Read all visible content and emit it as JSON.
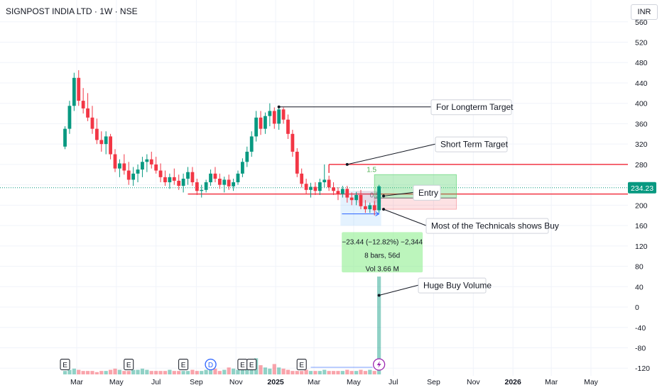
{
  "header": {
    "title": "SIGNPOST INDIA LTD · 1W · NSE",
    "currency": "INR"
  },
  "price_tag": "234.23",
  "annotations": {
    "longterm": "For Longterm Target",
    "shortterm": "Short Term Target",
    "entry": "Entry",
    "technicals": "Most of the Technicals shows Buy",
    "volume": "Huge Buy Volume",
    "rr_top": "1.5",
    "rr_mid": "0.5"
  },
  "measure": {
    "line1": "−23.44 (−12.82%) −2,344",
    "line2": "8 bars, 56d",
    "line3": "Vol 3.66 M"
  },
  "event_markers": [
    {
      "label": "E",
      "date": "2024-02-12"
    },
    {
      "label": "E",
      "date": "2024-05-20"
    },
    {
      "label": "E",
      "date": "2024-08-12"
    },
    {
      "label": "D",
      "date": "2024-09-23"
    },
    {
      "label": "E",
      "date": "2024-11-11"
    },
    {
      "label": "E",
      "date": "2024-11-25"
    },
    {
      "label": "E",
      "date": "2025-02-10"
    }
  ],
  "chart_data": {
    "type": "candlestick",
    "title": "SIGNPOST INDIA LTD · 1W · NSE",
    "currency": "INR",
    "y_ticks": [
      560,
      520,
      480,
      440,
      400,
      360,
      320,
      280,
      240,
      200,
      160,
      120,
      80,
      40,
      0,
      -40,
      -80,
      -120
    ],
    "ylim": [
      -135,
      575
    ],
    "x_tick_labels": [
      {
        "label": "Mar",
        "date": "2024-03-01"
      },
      {
        "label": "May",
        "date": "2024-05-01"
      },
      {
        "label": "Jul",
        "date": "2024-07-01"
      },
      {
        "label": "Sep",
        "date": "2024-09-01"
      },
      {
        "label": "Nov",
        "date": "2024-11-01"
      },
      {
        "label": "2025",
        "date": "2025-01-01"
      },
      {
        "label": "Mar",
        "date": "2025-03-01"
      },
      {
        "label": "May",
        "date": "2025-05-01"
      },
      {
        "label": "Jul",
        "date": "2025-07-01"
      },
      {
        "label": "Sep",
        "date": "2025-09-01"
      },
      {
        "label": "Nov",
        "date": "2025-11-01"
      },
      {
        "label": "2026",
        "date": "2026-01-01"
      },
      {
        "label": "Mar",
        "date": "2026-03-01"
      },
      {
        "label": "May",
        "date": "2026-05-01"
      }
    ],
    "first_week": "2024-02-12",
    "candles": [
      [
        315,
        355,
        310,
        350
      ],
      [
        350,
        405,
        340,
        395
      ],
      [
        395,
        460,
        385,
        450
      ],
      [
        450,
        465,
        395,
        405
      ],
      [
        405,
        430,
        380,
        390
      ],
      [
        390,
        420,
        365,
        372
      ],
      [
        372,
        395,
        340,
        350
      ],
      [
        350,
        370,
        320,
        328
      ],
      [
        328,
        345,
        305,
        320
      ],
      [
        320,
        345,
        300,
        335
      ],
      [
        335,
        340,
        290,
        300
      ],
      [
        300,
        310,
        265,
        272
      ],
      [
        272,
        290,
        255,
        282
      ],
      [
        282,
        300,
        260,
        268
      ],
      [
        268,
        285,
        240,
        250
      ],
      [
        250,
        275,
        238,
        262
      ],
      [
        262,
        280,
        245,
        270
      ],
      [
        270,
        295,
        255,
        285
      ],
      [
        285,
        300,
        265,
        290
      ],
      [
        290,
        305,
        272,
        280
      ],
      [
        280,
        295,
        262,
        268
      ],
      [
        268,
        282,
        245,
        255
      ],
      [
        255,
        268,
        238,
        245
      ],
      [
        245,
        262,
        232,
        255
      ],
      [
        255,
        272,
        240,
        248
      ],
      [
        248,
        260,
        230,
        238
      ],
      [
        238,
        262,
        225,
        252
      ],
      [
        252,
        275,
        240,
        265
      ],
      [
        265,
        275,
        238,
        245
      ],
      [
        245,
        252,
        220,
        228
      ],
      [
        228,
        240,
        215,
        230
      ],
      [
        230,
        250,
        225,
        245
      ],
      [
        245,
        270,
        238,
        262
      ],
      [
        262,
        275,
        245,
        252
      ],
      [
        252,
        262,
        232,
        240
      ],
      [
        240,
        256,
        225,
        250
      ],
      [
        250,
        260,
        230,
        237
      ],
      [
        237,
        252,
        228,
        245
      ],
      [
        245,
        268,
        240,
        262
      ],
      [
        262,
        292,
        255,
        285
      ],
      [
        285,
        315,
        275,
        305
      ],
      [
        305,
        345,
        295,
        335
      ],
      [
        335,
        385,
        325,
        372
      ],
      [
        372,
        385,
        338,
        350
      ],
      [
        350,
        382,
        340,
        375
      ],
      [
        375,
        400,
        355,
        385
      ],
      [
        385,
        392,
        350,
        360
      ],
      [
        360,
        395,
        348,
        388
      ],
      [
        388,
        392,
        360,
        368
      ],
      [
        368,
        378,
        330,
        340
      ],
      [
        340,
        348,
        295,
        305
      ],
      [
        305,
        312,
        255,
        262
      ],
      [
        262,
        272,
        235,
        242
      ],
      [
        242,
        252,
        222,
        230
      ],
      [
        230,
        244,
        215,
        236
      ],
      [
        236,
        245,
        220,
        228
      ],
      [
        228,
        252,
        220,
        245
      ],
      [
        245,
        280,
        235,
        250
      ],
      [
        250,
        258,
        228,
        235
      ],
      [
        235,
        245,
        220,
        228
      ],
      [
        228,
        235,
        210,
        222
      ],
      [
        222,
        238,
        215,
        232
      ],
      [
        232,
        238,
        205,
        215
      ],
      [
        215,
        225,
        200,
        210
      ],
      [
        210,
        226,
        200,
        220
      ],
      [
        220,
        230,
        192,
        198
      ],
      [
        198,
        210,
        185,
        192
      ],
      [
        192,
        205,
        185,
        200
      ],
      [
        200,
        208,
        180,
        190
      ],
      [
        190,
        240,
        185,
        237
      ]
    ],
    "volume": [
      3,
      4,
      5,
      4,
      3,
      3,
      3,
      2,
      3,
      3,
      4,
      5,
      4,
      3,
      3,
      4,
      4,
      5,
      4,
      3,
      3,
      3,
      3,
      4,
      3,
      3,
      3,
      3,
      4,
      3,
      3,
      4,
      10,
      5,
      3,
      4,
      6,
      5,
      4,
      5,
      6,
      7,
      14,
      8,
      6,
      5,
      9,
      6,
      5,
      4,
      3,
      3,
      3,
      4,
      3,
      3,
      3,
      4,
      3,
      3,
      3,
      3,
      4,
      3,
      3,
      4,
      3,
      4,
      3,
      85
    ],
    "levels": {
      "current_price": 234.23,
      "support": 222,
      "short_term_target": 280,
      "entry": 214,
      "stop": 192,
      "longterm_target": 393
    },
    "trade_box": {
      "start_week": 68,
      "end_week": 86,
      "target": 260,
      "entry": 214,
      "stop": 192,
      "ratio_labels": [
        "1.5",
        "0.5"
      ]
    },
    "measure": {
      "from_week": 61,
      "to_week": 69,
      "change": -23.44,
      "change_pct": -12.82,
      "bars": 8,
      "days": 56,
      "volume": "3.66 M"
    }
  }
}
